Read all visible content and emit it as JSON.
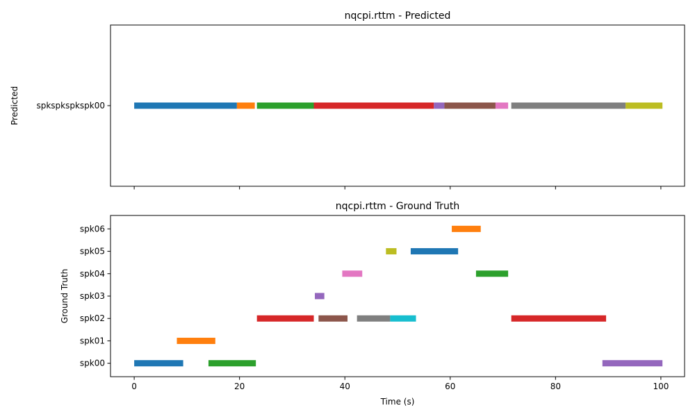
{
  "palette": [
    "#1f77b4",
    "#ff7f0e",
    "#2ca02c",
    "#d62728",
    "#9467bd",
    "#8c564b",
    "#e377c2",
    "#7f7f7f",
    "#bcbd22",
    "#17becf"
  ],
  "chart_data": [
    {
      "type": "timeline",
      "title": "nqcpi.rttm - Predicted",
      "ylabel": "Predicted",
      "xlabel": "",
      "xlim": [
        -4.5,
        104.5
      ],
      "xticks": [
        0,
        20,
        40,
        60,
        80,
        100
      ],
      "show_xtick_labels": false,
      "tracks": [
        "spkspkspkspk00"
      ],
      "segments": [
        {
          "track": 0,
          "start": 0,
          "end": 19.5,
          "color": 0
        },
        {
          "track": 0,
          "start": 19.5,
          "end": 22.9,
          "color": 1
        },
        {
          "track": 0,
          "start": 23.3,
          "end": 34.1,
          "color": 2
        },
        {
          "track": 0,
          "start": 34.1,
          "end": 56.9,
          "color": 3
        },
        {
          "track": 0,
          "start": 56.9,
          "end": 58.9,
          "color": 4
        },
        {
          "track": 0,
          "start": 58.9,
          "end": 68.6,
          "color": 5
        },
        {
          "track": 0,
          "start": 68.6,
          "end": 71.0,
          "color": 6
        },
        {
          "track": 0,
          "start": 71.6,
          "end": 93.3,
          "color": 7
        },
        {
          "track": 0,
          "start": 93.3,
          "end": 100.3,
          "color": 8
        }
      ]
    },
    {
      "type": "timeline",
      "title": "nqcpi.rttm - Ground Truth",
      "ylabel": "Ground Truth",
      "xlabel": "Time (s)",
      "xlim": [
        -4.5,
        104.5
      ],
      "xticks": [
        0,
        20,
        40,
        60,
        80,
        100
      ],
      "show_xtick_labels": true,
      "tracks": [
        "spk00",
        "spk01",
        "spk02",
        "spk03",
        "spk04",
        "spk05",
        "spk06"
      ],
      "segments": [
        {
          "track": 0,
          "start": 0,
          "end": 9.3,
          "color": 0
        },
        {
          "track": 0,
          "start": 14.1,
          "end": 23.1,
          "color": 2
        },
        {
          "track": 0,
          "start": 88.9,
          "end": 100.3,
          "color": 4
        },
        {
          "track": 1,
          "start": 8.1,
          "end": 15.4,
          "color": 1
        },
        {
          "track": 2,
          "start": 23.3,
          "end": 34.1,
          "color": 3
        },
        {
          "track": 2,
          "start": 35.0,
          "end": 40.5,
          "color": 5
        },
        {
          "track": 2,
          "start": 42.3,
          "end": 48.6,
          "color": 7
        },
        {
          "track": 2,
          "start": 48.6,
          "end": 53.5,
          "color": 9
        },
        {
          "track": 2,
          "start": 71.6,
          "end": 89.6,
          "color": 3
        },
        {
          "track": 3,
          "start": 34.3,
          "end": 36.1,
          "color": 4
        },
        {
          "track": 4,
          "start": 39.5,
          "end": 43.3,
          "color": 6
        },
        {
          "track": 4,
          "start": 64.9,
          "end": 71.0,
          "color": 2
        },
        {
          "track": 5,
          "start": 47.8,
          "end": 49.8,
          "color": 8
        },
        {
          "track": 5,
          "start": 52.5,
          "end": 61.5,
          "color": 0
        },
        {
          "track": 6,
          "start": 60.3,
          "end": 65.8,
          "color": 1
        }
      ]
    }
  ]
}
